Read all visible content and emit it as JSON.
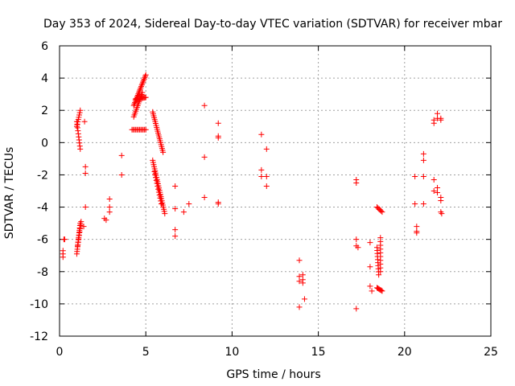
{
  "chart_data": {
    "type": "scatter",
    "title": "Day 353 of 2024, Sidereal Day-to-day VTEC variation (SDTVAR) for receiver mbar",
    "xlabel": "GPS time / hours",
    "ylabel": "SDTVAR / TECUs",
    "xlim": [
      0,
      25
    ],
    "ylim": [
      -12,
      6
    ],
    "xticks": [
      0,
      5,
      10,
      15,
      20,
      25
    ],
    "yticks": [
      -12,
      -10,
      -8,
      -6,
      -4,
      -2,
      0,
      2,
      4,
      6
    ],
    "grid": true,
    "marker": "plus",
    "color": "#ff0000",
    "segments": [
      {
        "from": [
          0.2,
          -6.7
        ],
        "to": [
          0.2,
          -7.1
        ],
        "n": 3
      },
      {
        "from": [
          0.25,
          -6.0
        ],
        "to": [
          0.3,
          -6.0
        ],
        "n": 2
      },
      {
        "from": [
          1.0,
          1.0
        ],
        "to": [
          1.2,
          2.0
        ],
        "n": 8
      },
      {
        "from": [
          1.0,
          1.3
        ],
        "to": [
          1.2,
          -0.4
        ],
        "n": 10
      },
      {
        "from": [
          1.0,
          -6.9
        ],
        "to": [
          1.2,
          -5.0
        ],
        "n": 14
      },
      {
        "from": [
          1.05,
          -6.4
        ],
        "to": [
          1.25,
          -4.9
        ],
        "n": 8
      },
      {
        "from": [
          4.3,
          2.3
        ],
        "to": [
          5.0,
          4.2
        ],
        "n": 22
      },
      {
        "from": [
          4.3,
          1.6
        ],
        "to": [
          4.8,
          3.1
        ],
        "n": 14
      },
      {
        "from": [
          4.4,
          2.7
        ],
        "to": [
          5.0,
          2.8
        ],
        "n": 12
      },
      {
        "from": [
          4.2,
          0.8
        ],
        "to": [
          5.0,
          0.8
        ],
        "n": 12
      },
      {
        "from": [
          5.4,
          1.9
        ],
        "to": [
          6.0,
          -0.6
        ],
        "n": 22
      },
      {
        "from": [
          5.4,
          -1.1
        ],
        "to": [
          6.1,
          -4.4
        ],
        "n": 26
      },
      {
        "from": [
          5.5,
          -1.8
        ],
        "to": [
          5.9,
          -3.8
        ],
        "n": 12
      },
      {
        "from": [
          18.4,
          -4.0
        ],
        "to": [
          18.7,
          -4.3
        ],
        "n": 6
      },
      {
        "from": [
          18.4,
          -6.5
        ],
        "to": [
          18.5,
          -8.2
        ],
        "n": 10
      },
      {
        "from": [
          18.6,
          -5.9
        ],
        "to": [
          18.6,
          -8.0
        ],
        "n": 10
      },
      {
        "from": [
          18.4,
          -9.0
        ],
        "to": [
          18.7,
          -9.2
        ],
        "n": 7
      }
    ],
    "points": [
      [
        1.45,
        1.3
      ],
      [
        1.5,
        -1.5
      ],
      [
        1.5,
        -1.9
      ],
      [
        1.5,
        -4.0
      ],
      [
        1.4,
        -5.2
      ],
      [
        2.6,
        -4.7
      ],
      [
        2.7,
        -4.8
      ],
      [
        2.9,
        -3.5
      ],
      [
        2.9,
        -4.0
      ],
      [
        2.9,
        -4.3
      ],
      [
        3.6,
        -0.8
      ],
      [
        3.6,
        -2.0
      ],
      [
        6.7,
        -2.7
      ],
      [
        6.7,
        -4.1
      ],
      [
        6.7,
        -5.4
      ],
      [
        6.7,
        -5.8
      ],
      [
        7.2,
        -4.3
      ],
      [
        7.5,
        -3.8
      ],
      [
        8.4,
        2.3
      ],
      [
        8.4,
        -0.9
      ],
      [
        8.4,
        -3.4
      ],
      [
        9.2,
        1.2
      ],
      [
        9.2,
        0.3
      ],
      [
        9.2,
        0.4
      ],
      [
        9.2,
        -3.7
      ],
      [
        9.2,
        -3.8
      ],
      [
        11.7,
        0.5
      ],
      [
        11.7,
        -1.7
      ],
      [
        11.7,
        -2.1
      ],
      [
        12.0,
        -0.4
      ],
      [
        12.0,
        -2.1
      ],
      [
        12.0,
        -2.7
      ],
      [
        13.9,
        -7.3
      ],
      [
        13.9,
        -8.3
      ],
      [
        13.9,
        -8.6
      ],
      [
        13.9,
        -10.2
      ],
      [
        14.1,
        -8.2
      ],
      [
        14.1,
        -8.5
      ],
      [
        14.1,
        -8.7
      ],
      [
        14.2,
        -9.7
      ],
      [
        17.2,
        -2.3
      ],
      [
        17.2,
        -2.5
      ],
      [
        17.2,
        -6.0
      ],
      [
        17.2,
        -6.4
      ],
      [
        17.2,
        -10.3
      ],
      [
        17.3,
        -6.5
      ],
      [
        18.0,
        -6.2
      ],
      [
        18.0,
        -7.7
      ],
      [
        18.0,
        -8.9
      ],
      [
        18.1,
        -9.2
      ],
      [
        20.6,
        -2.1
      ],
      [
        20.6,
        -3.8
      ],
      [
        20.7,
        -5.2
      ],
      [
        20.7,
        -5.5
      ],
      [
        20.7,
        -5.6
      ],
      [
        21.1,
        -0.7
      ],
      [
        21.1,
        -1.1
      ],
      [
        21.1,
        -2.1
      ],
      [
        21.1,
        -3.8
      ],
      [
        21.7,
        1.4
      ],
      [
        21.7,
        1.2
      ],
      [
        21.7,
        -2.3
      ],
      [
        21.7,
        -3.0
      ],
      [
        21.9,
        1.8
      ],
      [
        21.9,
        1.5
      ],
      [
        21.9,
        -2.8
      ],
      [
        21.9,
        -3.1
      ],
      [
        22.1,
        1.5
      ],
      [
        22.1,
        1.4
      ],
      [
        22.1,
        -3.4
      ],
      [
        22.1,
        -3.6
      ],
      [
        22.1,
        -4.3
      ],
      [
        22.15,
        -4.4
      ]
    ]
  }
}
